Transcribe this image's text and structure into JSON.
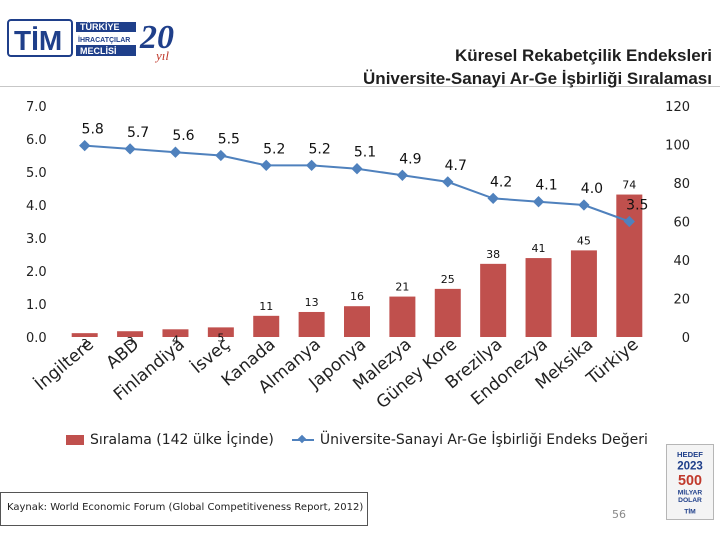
{
  "header": {
    "brand_tim": "TİM",
    "brand_line1": "TÜRKİYE",
    "brand_line2": "İHRACATÇILAR",
    "brand_line3": "MECLİSİ",
    "anniversary_number": "20",
    "anniversary_suffix": "yıl",
    "title_line1": "Küresel Rekabetçilik Endeksleri",
    "title_line2": "Üniversite-Sanayi Ar-Ge İşbirliği Sıralaması"
  },
  "chart_data": {
    "type": "bar+line",
    "categories": [
      "İngiltere",
      "ABD",
      "Finlandiya",
      "İsveç",
      "Kanada",
      "Almanya",
      "Japonya",
      "Malezya",
      "Güney Kore",
      "Brezilya",
      "Endonezya",
      "Meksika",
      "Türkiye"
    ],
    "bar_series": {
      "name": "Sıralama (142 ülke İçinde)",
      "axis": "right",
      "values": [
        2,
        3,
        4,
        5,
        11,
        13,
        16,
        21,
        25,
        38,
        41,
        45,
        74
      ],
      "color": "#c0504d"
    },
    "line_series": {
      "name": "Üniversite-Sanayi Ar-Ge İşbirliği Endeks Değeri",
      "axis": "left",
      "values": [
        5.8,
        5.7,
        5.6,
        5.5,
        5.2,
        5.2,
        5.1,
        4.9,
        4.7,
        4.2,
        4.1,
        4.0,
        3.5
      ],
      "value_labels": [
        "5.8",
        "5.7",
        "5.6",
        "5.5",
        "5.2",
        "5.2",
        "5.1",
        "4.9",
        "4.7",
        "4.2",
        "4.1",
        "4.0",
        "3.5"
      ],
      "color": "#4f81bd"
    },
    "left_axis": {
      "min": 0,
      "max": 7,
      "ticks": [
        "0.0",
        "1.0",
        "2.0",
        "3.0",
        "4.0",
        "5.0",
        "6.0",
        "7.0"
      ]
    },
    "right_axis": {
      "min": 0,
      "max": 120,
      "ticks": [
        "0",
        "20",
        "40",
        "60",
        "80",
        "100",
        "120"
      ]
    },
    "bar_value_scale_note": "",
    "grid": false,
    "legend_position": "bottom"
  },
  "footer": {
    "source": "Kaynak: World Economic Forum (Global Competitiveness Report, 2012)",
    "page_number": "56",
    "badge_hedef": "HEDEF",
    "badge_year": "2023",
    "badge_amount": "500",
    "badge_unit1": "MİLYAR",
    "badge_unit2": "DOLAR"
  }
}
